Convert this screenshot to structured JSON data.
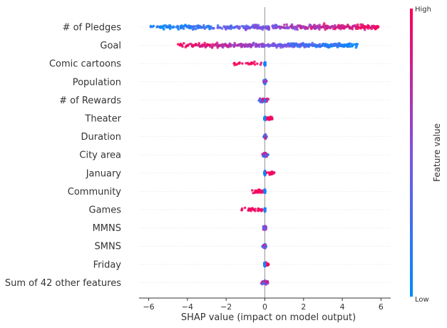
{
  "chart_data": {
    "type": "scatter",
    "subtype": "shap-beeswarm",
    "xlabel": "SHAP value (impact on model output)",
    "xlim": [
      -6.5,
      6.5
    ],
    "xticks": [
      -6,
      -4,
      -2,
      0,
      2,
      4,
      6
    ],
    "colorbar": {
      "title": "Feature value",
      "high_label": "High",
      "low_label": "Low",
      "low_color": "#008bfb",
      "mid_color": "#7c52e6",
      "high_color": "#ff0052"
    },
    "features": [
      {
        "name": "# of Pledges",
        "min": -5.9,
        "max": 5.9,
        "density": "wide",
        "color_trend": "increasing"
      },
      {
        "name": "Goal",
        "min": -4.5,
        "max": 4.8,
        "density": "wide",
        "color_trend": "decreasing"
      },
      {
        "name": "Comic cartoons",
        "min": -1.6,
        "max": 0.1,
        "density": "narrow",
        "high_side": "negative"
      },
      {
        "name": "Population",
        "min": -0.2,
        "max": 0.2,
        "density": "narrow",
        "color_trend": "mixed"
      },
      {
        "name": "# of Rewards",
        "min": -0.8,
        "max": 0.4,
        "density": "narrow",
        "color_trend": "mixed"
      },
      {
        "name": "Theater",
        "min": -0.1,
        "max": 0.4,
        "density": "narrow",
        "high_side": "positive"
      },
      {
        "name": "Duration",
        "min": -0.1,
        "max": 0.3,
        "density": "narrow",
        "color_trend": "mixed"
      },
      {
        "name": "City area",
        "min": -0.3,
        "max": 0.4,
        "density": "narrow",
        "color_trend": "mixed"
      },
      {
        "name": "January",
        "min": -0.2,
        "max": 0.5,
        "density": "narrow",
        "high_side": "positive"
      },
      {
        "name": "Community",
        "min": -0.7,
        "max": 0.1,
        "density": "narrow",
        "high_side": "negative"
      },
      {
        "name": "Games",
        "min": -1.2,
        "max": 0.1,
        "density": "narrow",
        "high_side": "negative"
      },
      {
        "name": "MMNS",
        "min": -0.2,
        "max": 0.2,
        "density": "narrow",
        "color_trend": "mixed"
      },
      {
        "name": "SMNS",
        "min": -0.3,
        "max": 0.2,
        "density": "narrow",
        "color_trend": "mixed"
      },
      {
        "name": "Friday",
        "min": -0.1,
        "max": 0.2,
        "density": "narrow",
        "high_side": "positive"
      },
      {
        "name": "Sum of 42 other features",
        "min": -0.5,
        "max": 0.5,
        "density": "narrow",
        "color_trend": "mixed"
      }
    ]
  }
}
